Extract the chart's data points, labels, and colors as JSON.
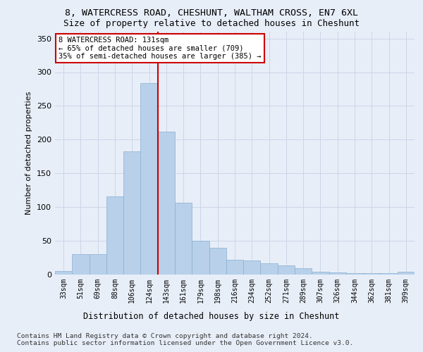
{
  "title": "8, WATERCRESS ROAD, CHESHUNT, WALTHAM CROSS, EN7 6XL",
  "subtitle": "Size of property relative to detached houses in Cheshunt",
  "xlabel_bottom": "Distribution of detached houses by size in Cheshunt",
  "ylabel": "Number of detached properties",
  "categories": [
    "33sqm",
    "51sqm",
    "69sqm",
    "88sqm",
    "106sqm",
    "124sqm",
    "143sqm",
    "161sqm",
    "179sqm",
    "198sqm",
    "216sqm",
    "234sqm",
    "252sqm",
    "271sqm",
    "289sqm",
    "307sqm",
    "326sqm",
    "344sqm",
    "362sqm",
    "381sqm",
    "399sqm"
  ],
  "values": [
    5,
    30,
    30,
    116,
    183,
    284,
    212,
    106,
    50,
    40,
    22,
    21,
    17,
    14,
    9,
    4,
    3,
    2,
    2,
    2,
    4
  ],
  "bar_color": "#b8d0ea",
  "bar_edge_color": "#8ab0d0",
  "grid_color": "#ccd6e8",
  "background_color": "#e8eef8",
  "vline_color": "#cc0000",
  "annotation_text": "8 WATERCRESS ROAD: 131sqm\n← 65% of detached houses are smaller (709)\n35% of semi-detached houses are larger (385) →",
  "annotation_box_color": "#ffffff",
  "annotation_box_edge": "#cc0000",
  "footnote_line1": "Contains HM Land Registry data © Crown copyright and database right 2024.",
  "footnote_line2": "Contains public sector information licensed under the Open Government Licence v3.0.",
  "ylim": [
    0,
    360
  ],
  "title_fontsize": 9.5,
  "subtitle_fontsize": 9
}
